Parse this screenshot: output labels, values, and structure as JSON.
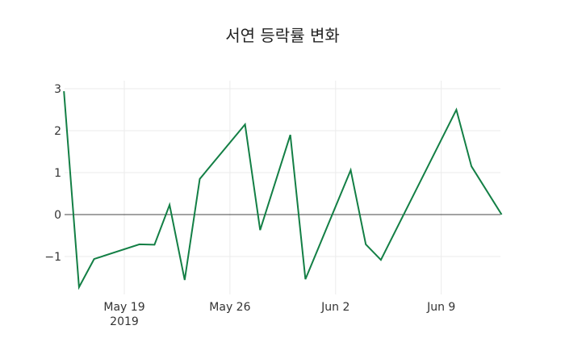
{
  "chart_data": {
    "type": "line",
    "title": "서연 등락률 변화",
    "xlabel": "",
    "ylabel": "",
    "x": [
      "2019-05-15",
      "2019-05-16",
      "2019-05-17",
      "2019-05-20",
      "2019-05-21",
      "2019-05-22",
      "2019-05-23",
      "2019-05-24",
      "2019-05-27",
      "2019-05-28",
      "2019-05-30",
      "2019-05-31",
      "2019-06-03",
      "2019-06-04",
      "2019-06-05",
      "2019-06-10",
      "2019-06-11",
      "2019-06-13"
    ],
    "series": [
      {
        "name": "서연",
        "color": "#137f45",
        "values": [
          2.94,
          -1.73,
          -1.06,
          -0.71,
          -0.72,
          0.23,
          -1.56,
          0.85,
          2.15,
          -0.37,
          1.9,
          -1.54,
          1.06,
          -0.71,
          -1.08,
          2.5,
          1.15,
          0.0
        ]
      }
    ],
    "ylim": [
      -1.9,
      3.2
    ],
    "yticks": [
      3,
      2,
      1,
      0,
      -1
    ],
    "ytick_labels": [
      "3",
      "2",
      "1",
      "0",
      "−1"
    ],
    "xticks": [
      "2019-05-19",
      "2019-05-26",
      "2019-06-02",
      "2019-06-09"
    ],
    "xtick_labels": [
      "May 19\n2019",
      "May 26",
      "Jun 2",
      "Jun 9"
    ],
    "grid": true,
    "legend": false,
    "zero_line": true
  },
  "axis": {
    "y_labels": [
      "3",
      "2",
      "1",
      "0",
      "−1"
    ],
    "x_labels": [
      "May 19",
      "May 26",
      "Jun 2",
      "Jun 9"
    ],
    "x_year": "2019"
  }
}
